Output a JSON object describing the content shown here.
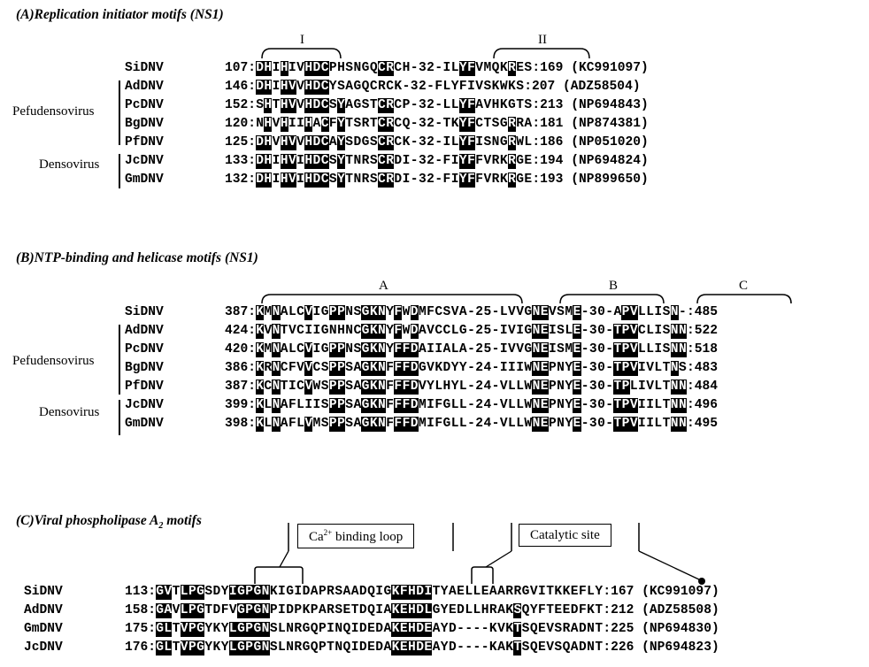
{
  "sections": [
    {
      "id": "A",
      "title": "(A)Replication initiator motifs (NS1)",
      "motifs": [
        "I",
        "II"
      ],
      "groups": [
        "Pefudensovirus",
        "Densovirus"
      ],
      "rows": [
        {
          "name": "SiDNV",
          "num": "107:",
          "seq": "DHIHIVHDCPHSNGQCRCH-32-ILYFVMQKRES",
          "end": ":169",
          "acc": "(KC991097)",
          "hl": "1111011110000011100000000111000100"
        },
        {
          "name": "AdDNV",
          "num": "146:",
          "seq": "DHIHVVHDCYSAGQCRCK-32-FLYFIVSKWKS",
          "end": ":207",
          "acc": "(ADZ58504)",
          "hl": "1111011110000011100000000111000100"
        },
        {
          "name": "PcDNV",
          "num": "152:",
          "seq": "SHTHVVHDCSYAGSTCRCP-32-LLYFAVHKGTS",
          "end": ":213",
          "acc": "(NP694843)",
          "hl": "0101011110000001100000000111000100"
        },
        {
          "name": "BgDNV",
          "num": "120:",
          "seq": "NHVHIIHACFYTSRTCRCQ-32-TKYFCTSGRRA",
          "end": ":181",
          "acc": "(NP874381)",
          "hl": "0101011010000001100000000111000000"
        },
        {
          "name": "PfDNV",
          "num": "125:",
          "seq": "DHVHVVHDCAYSDGSCRCK-32-ILYFISNGRWL",
          "end": ":186",
          "acc": "(NP051020)",
          "hl": "1111011110000001100000000111000000"
        },
        {
          "name": "JcDNV",
          "num": "133:",
          "seq": "DHIHVIHDCSYTNRSCRDI-32-FIYFFVRKRGE",
          "end": ":194",
          "acc": "(NP694824)",
          "hl": "1111011110000001100000000111000100"
        },
        {
          "name": "GmDNV",
          "num": "132:",
          "seq": "DHIHVIHDCSYTNRSCRDI-32-FIYFFVRKRGE",
          "end": ":193",
          "acc": "(NP899650)",
          "hl": "1111011110000001100000000111000100"
        }
      ]
    },
    {
      "id": "B",
      "title": "(B)NTP-binding and helicase motifs (NS1)",
      "motifs": [
        "A",
        "B",
        "C"
      ],
      "groups": [
        "Pefudensovirus",
        "Densovirus"
      ],
      "rows": [
        {
          "name": "SiDNV",
          "num": "387:",
          "seq": "KMNALCVIGPPNSGKNYFWDMFCSVA-25-LVVGNEVSME-30-APVLLISN-",
          "end": ":485",
          "acc": "",
          "hl": ""
        },
        {
          "name": "AdDNV",
          "num": "424:",
          "seq": "KVNTVCIIGNHNCGKNYFWDAVCCLG-25-IVIGNEISLE-30-TPVCLISNN",
          "end": ":522",
          "acc": "",
          "hl": ""
        },
        {
          "name": "PcDNV",
          "num": "420:",
          "seq": "KMNALCVIGPPNSGKNYFFDAIIALA-25-IVVGNEISME-30-TPVLLISNN",
          "end": ":518",
          "acc": "",
          "hl": ""
        },
        {
          "name": "BgDNV",
          "num": "386:",
          "seq": "KRNCFVVCSPPSAGKNFFFDGVKDYY-24-IIIWNEPNYE-30-TPVIVLTNS",
          "end": ":483",
          "acc": "",
          "hl": ""
        },
        {
          "name": "PfDNV",
          "num": "387:",
          "seq": "KCNTICVWSPPSAGKNFFFDVYLHYL-24-VLLWNEPNYE-30-TPLIVLTNN",
          "end": ":484",
          "acc": "",
          "hl": ""
        },
        {
          "name": "JcDNV",
          "num": "399:",
          "seq": "KLNAFLIISPPSAGKNFFFDMIFGLL-24-VLLWNEPNYE-30-TPVIILTNN",
          "end": ":496",
          "acc": "",
          "hl": ""
        },
        {
          "name": "GmDNV",
          "num": "398:",
          "seq": "KLNAFLVMSPPSAGKNFFFDMIFGLL-24-VLLWNEPNYE-30-TPVIILTNN",
          "end": ":495",
          "acc": "",
          "hl": ""
        }
      ]
    },
    {
      "id": "C",
      "title": "(C)Viral phospholipase A",
      "title_sub": "2",
      "title_suffix": " motifs",
      "box1_pre": "Ca",
      "box1_sup": "2+",
      "box1_post": " binding loop",
      "box2": "Catalytic site",
      "rows": [
        {
          "name": "SiDNV",
          "num": "113:",
          "seq": "GVTLPGSDYIGPGNKIGIDAPRSAADQIGKFHDITYAELLEAARRGVITKKEFLY",
          "end": ":167",
          "acc": "(KC991097)"
        },
        {
          "name": "AdDNV",
          "num": "158:",
          "seq": "GAVLPGTDFVGPGNPIDPKPARSETDQIAKEHDLGYEDLLHRAKSQYFTEEDFKT",
          "end": ":212",
          "acc": "(ADZ58508)"
        },
        {
          "name": "GmDNV",
          "num": "175:",
          "seq": "GLTVPGYKYLGPGNSLNRGQPINQIDEDAKEHDEAYD----KVKTSQEVSRADNT",
          "end": ":225",
          "acc": "(NP694830)"
        },
        {
          "name": "JcDNV",
          "num": "176:",
          "seq": "GLTVPGYKYLGPGNSLNRGQPTNQIDEDAKEHDEAYD----KAKTSQEVSQADNT",
          "end": ":226",
          "acc": "(NP694823)"
        }
      ]
    }
  ]
}
